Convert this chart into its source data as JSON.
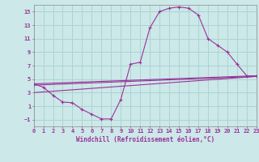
{
  "background_color": "#cce8e8",
  "line_color": "#993399",
  "grid_color": "#aad4d4",
  "xlabel": "Windchill (Refroidissement éolien,°C)",
  "xlim": [
    0,
    23
  ],
  "ylim": [
    -2,
    16
  ],
  "xticks": [
    0,
    1,
    2,
    3,
    4,
    5,
    6,
    7,
    8,
    9,
    10,
    11,
    12,
    13,
    14,
    15,
    16,
    17,
    18,
    19,
    20,
    21,
    22,
    23
  ],
  "yticks": [
    -1,
    1,
    3,
    5,
    7,
    9,
    11,
    13,
    15
  ],
  "series": [
    [
      0,
      4.3
    ],
    [
      1,
      3.8
    ],
    [
      2,
      2.6
    ],
    [
      3,
      1.6
    ],
    [
      4,
      1.5
    ],
    [
      5,
      0.5
    ],
    [
      6,
      -0.2
    ],
    [
      7,
      -0.9
    ],
    [
      8,
      -0.9
    ],
    [
      9,
      2.0
    ],
    [
      10,
      7.2
    ],
    [
      11,
      7.5
    ],
    [
      12,
      12.6
    ],
    [
      13,
      15.0
    ],
    [
      14,
      15.5
    ],
    [
      15,
      15.7
    ],
    [
      16,
      15.5
    ],
    [
      17,
      14.5
    ],
    [
      18,
      11.0
    ],
    [
      19,
      10.0
    ],
    [
      20,
      9.0
    ],
    [
      21,
      7.2
    ],
    [
      22,
      5.5
    ],
    [
      23,
      5.4
    ]
  ],
  "line2": [
    [
      0,
      4.3
    ],
    [
      23,
      5.5
    ]
  ],
  "line3": [
    [
      0,
      4.1
    ],
    [
      23,
      5.4
    ]
  ],
  "line4": [
    [
      0,
      3.0
    ],
    [
      23,
      5.4
    ]
  ],
  "tick_fontsize": 5.0,
  "xlabel_fontsize": 5.5
}
